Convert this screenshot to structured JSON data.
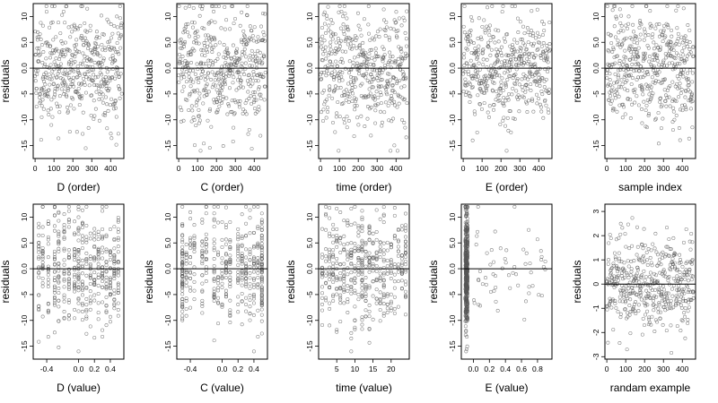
{
  "chart_data": [
    {
      "type": "scatter",
      "xlabel": "D (order)",
      "ylabel": "residuals",
      "xlim": [
        -10,
        470
      ],
      "ylim": [
        -17.5,
        12.5
      ],
      "xticks": [
        0,
        100,
        200,
        300,
        400
      ],
      "yticks": [
        -15,
        -10,
        -5,
        0,
        5,
        10
      ],
      "yticklabels": [
        "-15",
        "-10",
        "-5",
        "0.0",
        "5.0",
        "10"
      ],
      "points": {
        "gen": "index",
        "n": 460,
        "seed": 11,
        "spread": 5.5,
        "min": -16,
        "max": 12
      }
    },
    {
      "type": "scatter",
      "xlabel": "C (order)",
      "ylabel": "residuals",
      "xlim": [
        -10,
        470
      ],
      "ylim": [
        -17.5,
        12.5
      ],
      "xticks": [
        0,
        100,
        200,
        300,
        400
      ],
      "yticks": [
        -15,
        -10,
        -5,
        0,
        5,
        10
      ],
      "yticklabels": [
        "-15",
        "-10",
        "-5",
        "0.0",
        "5.0",
        "10"
      ],
      "points": {
        "gen": "index",
        "n": 460,
        "seed": 22,
        "spread": 5.5,
        "min": -16,
        "max": 12
      }
    },
    {
      "type": "scatter",
      "xlabel": "time (order)",
      "ylabel": "residuals",
      "xlim": [
        -10,
        470
      ],
      "ylim": [
        -17.5,
        12.5
      ],
      "xticks": [
        0,
        100,
        200,
        300,
        400
      ],
      "yticks": [
        -15,
        -10,
        -5,
        0,
        5,
        10
      ],
      "yticklabels": [
        "-15",
        "-10",
        "-5",
        "0.0",
        "5.0",
        "10"
      ],
      "points": {
        "gen": "index",
        "n": 460,
        "seed": 33,
        "spread": 5.5,
        "min": -16,
        "max": 12
      }
    },
    {
      "type": "scatter",
      "xlabel": "E (order)",
      "ylabel": "residuals",
      "xlim": [
        -10,
        470
      ],
      "ylim": [
        -17.5,
        12.5
      ],
      "xticks": [
        0,
        100,
        200,
        300,
        400
      ],
      "yticks": [
        -15,
        -10,
        -5,
        0,
        5,
        10
      ],
      "yticklabels": [
        "-15",
        "-10",
        "-5",
        "0.0",
        "5.0",
        "10"
      ],
      "points": {
        "gen": "index",
        "n": 460,
        "seed": 44,
        "spread": 5.5,
        "min": -16,
        "max": 12
      }
    },
    {
      "type": "scatter",
      "xlabel": "sample index",
      "ylabel": "residuals",
      "xlim": [
        -10,
        470
      ],
      "ylim": [
        -17.5,
        12.5
      ],
      "xticks": [
        0,
        100,
        200,
        300,
        400
      ],
      "yticks": [
        -15,
        -10,
        -5,
        0,
        5,
        10
      ],
      "yticklabels": [
        "-15",
        "-10",
        "-5",
        "0.0",
        "5.0",
        "10"
      ],
      "points": {
        "gen": "index",
        "n": 460,
        "seed": 55,
        "spread": 5.5,
        "min": -16,
        "max": 12
      }
    },
    {
      "type": "scatter",
      "xlabel": "D (value)",
      "ylabel": "residuals",
      "xlim": [
        -0.57,
        0.57
      ],
      "ylim": [
        -17.5,
        12.5
      ],
      "xticks": [
        -0.4,
        0,
        0.2,
        0.4
      ],
      "xticklabels": [
        "-0.4",
        "0.0",
        "0.2",
        "0.4"
      ],
      "yticks": [
        -15,
        -10,
        -5,
        0,
        5,
        10
      ],
      "yticklabels": [
        "-15",
        "-10",
        "-5",
        "0.0",
        "5.0",
        "10"
      ],
      "points": {
        "gen": "discrete",
        "n": 460,
        "seed": 66,
        "spread": 5.5,
        "min": -16,
        "max": 12,
        "levels": [
          -0.5,
          -0.45,
          -0.38,
          -0.3,
          -0.25,
          -0.18,
          -0.12,
          -0.05,
          0,
          0.05,
          0.1,
          0.15,
          0.2,
          0.25,
          0.3,
          0.35,
          0.4,
          0.45,
          0.5
        ]
      }
    },
    {
      "type": "scatter",
      "xlabel": "C (value)",
      "ylabel": "residuals",
      "xlim": [
        -0.57,
        0.57
      ],
      "ylim": [
        -17.5,
        12.5
      ],
      "xticks": [
        -0.4,
        0,
        0.2,
        0.4
      ],
      "xticklabels": [
        "-0.4",
        "0.0",
        "0.2",
        "0.4"
      ],
      "yticks": [
        -15,
        -10,
        -5,
        0,
        5,
        10
      ],
      "yticklabels": [
        "-15",
        "-10",
        "-5",
        "0.0",
        "5.0",
        "10"
      ],
      "points": {
        "gen": "discrete",
        "n": 460,
        "seed": 77,
        "spread": 5.5,
        "min": -16,
        "max": 12,
        "levels": [
          -0.5,
          -0.5,
          -0.5,
          -0.45,
          -0.4,
          -0.35,
          -0.25,
          -0.2,
          -0.1,
          -0.05,
          0,
          0.05,
          0.1,
          0.2,
          0.25,
          0.3,
          0.35,
          0.4,
          0.45,
          0.5,
          0.5,
          0.5
        ]
      }
    },
    {
      "type": "scatter",
      "xlabel": "time (value)",
      "ylabel": "residuals",
      "xlim": [
        0,
        25
      ],
      "ylim": [
        -17.5,
        12.5
      ],
      "xticks": [
        5,
        10,
        15,
        20
      ],
      "yticks": [
        -15,
        -10,
        -5,
        0,
        5,
        10
      ],
      "yticklabels": [
        "-15",
        "-10",
        "-5",
        "0.0",
        "5.0",
        "10"
      ],
      "points": {
        "gen": "discrete",
        "n": 460,
        "seed": 88,
        "spread": 5.5,
        "min": -16,
        "max": 12,
        "levels": [
          1,
          2,
          3,
          4,
          5,
          6,
          7,
          8,
          9,
          10,
          11,
          12,
          12,
          13,
          14,
          15,
          16,
          17,
          18,
          19,
          20,
          21,
          22,
          23,
          24
        ]
      }
    },
    {
      "type": "scatter",
      "xlabel": "E (value)",
      "ylabel": "residuals",
      "xlim": [
        -0.15,
        0.98
      ],
      "ylim": [
        -17.5,
        12.5
      ],
      "xticks": [
        0,
        0.2,
        0.4,
        0.6,
        0.8
      ],
      "xticklabels": [
        "0.0",
        "0.2",
        "0.4",
        "0.6",
        "0.8"
      ],
      "yticks": [
        -15,
        -10,
        -5,
        0,
        5,
        10
      ],
      "yticklabels": [
        "-15",
        "-10",
        "-5",
        "0.0",
        "5.0",
        "10"
      ],
      "points": {
        "gen": "clustered",
        "n": 460,
        "seed": 99,
        "spread": 5.5,
        "min": -16,
        "max": 12,
        "cluster": [
          -0.1,
          -0.07
        ],
        "clusterShare": 0.88,
        "tail": [
          0.0,
          0.93
        ]
      }
    },
    {
      "type": "scatter",
      "xlabel": "randam example",
      "ylabel": "residuals",
      "xlim": [
        -10,
        470
      ],
      "ylim": [
        -3.1,
        3.3
      ],
      "xticks": [
        0,
        100,
        200,
        300,
        400
      ],
      "yticks": [
        -3,
        -2,
        -1,
        0,
        1,
        2,
        3
      ],
      "yticklabels": [
        "-3",
        "-2",
        "-1",
        "0",
        "1",
        "2",
        "3"
      ],
      "points": {
        "gen": "index",
        "n": 460,
        "seed": 111,
        "spread": 1.0,
        "min": -2.9,
        "max": 3.1
      }
    }
  ]
}
